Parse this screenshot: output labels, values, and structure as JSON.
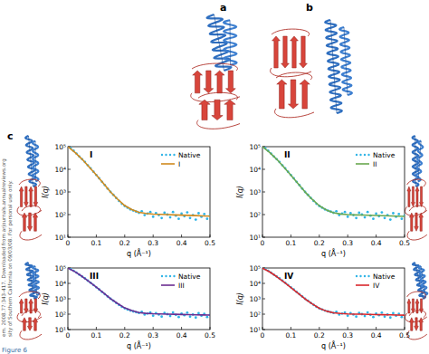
{
  "chart_data": [
    {
      "type": "line",
      "title": "I",
      "x_label": "q (Å⁻¹)",
      "y_label": "I(q)",
      "xlim": [
        0,
        0.5
      ],
      "ylim": [
        10,
        100000
      ],
      "log": "y",
      "legend": "upper right",
      "xticks": [
        0,
        0.1,
        0.2,
        0.3,
        0.4,
        0.5
      ],
      "yticks": [
        {
          "value": 10,
          "label": "10¹"
        },
        {
          "value": 100,
          "label": "10²"
        },
        {
          "value": 1000,
          "label": "10³"
        },
        {
          "value": 10000,
          "label": "10⁴"
        },
        {
          "value": 100000,
          "label": "10⁵"
        }
      ],
      "series": [
        {
          "name": "Native",
          "type": "scatter",
          "color": "#2fb4e6",
          "marker": "circle",
          "x": [
            0.01,
            0.02,
            0.03,
            0.04,
            0.05,
            0.06,
            0.07,
            0.08,
            0.09,
            0.1,
            0.11,
            0.12,
            0.13,
            0.14,
            0.15,
            0.16,
            0.17,
            0.18,
            0.19,
            0.2,
            0.21,
            0.22,
            0.23,
            0.24,
            0.25,
            0.26,
            0.27,
            0.28,
            0.29,
            0.3,
            0.31,
            0.32,
            0.33,
            0.34,
            0.35,
            0.36,
            0.37,
            0.38,
            0.39,
            0.4,
            0.41,
            0.42,
            0.43,
            0.44,
            0.45,
            0.46,
            0.47,
            0.48,
            0.49,
            0.5
          ],
          "values": [
            85000,
            66000,
            50000,
            37000,
            28000,
            21000,
            15000,
            11000,
            7800,
            5600,
            4000,
            2800,
            2000,
            1400,
            1000,
            740,
            540,
            400,
            300,
            240,
            200,
            170,
            150,
            135,
            120,
            140,
            95,
            110,
            130,
            80,
            115,
            95,
            70,
            120,
            100,
            75,
            130,
            90,
            65,
            110,
            85,
            125,
            70,
            95,
            60,
            115,
            80,
            105,
            65,
            90
          ]
        },
        {
          "name": "I",
          "type": "line",
          "color": "#d08a1e",
          "line_style": "solid",
          "x": [
            0,
            0.025,
            0.05,
            0.075,
            0.1,
            0.125,
            0.15,
            0.175,
            0.2,
            0.225,
            0.25,
            0.275,
            0.3,
            0.325,
            0.35,
            0.375,
            0.4,
            0.425,
            0.45,
            0.475,
            0.5
          ],
          "values": [
            100000,
            56000,
            28000,
            12600,
            5600,
            2400,
            1000,
            480,
            250,
            166,
            126,
            112,
            105,
            102,
            100,
            97,
            94,
            92,
            90,
            87,
            85
          ]
        }
      ]
    },
    {
      "type": "line",
      "title": "II",
      "x_label": "q (Å⁻¹)",
      "y_label": "I(q)",
      "xlim": [
        0,
        0.5
      ],
      "ylim": [
        10,
        100000
      ],
      "log": "y",
      "legend": "upper right",
      "xticks": [
        0,
        0.1,
        0.2,
        0.3,
        0.4,
        0.5
      ],
      "yticks": [
        {
          "value": 10,
          "label": "10¹"
        },
        {
          "value": 100,
          "label": "10²"
        },
        {
          "value": 1000,
          "label": "10³"
        },
        {
          "value": 10000,
          "label": "10⁴"
        },
        {
          "value": 100000,
          "label": "10⁵"
        }
      ],
      "series": [
        {
          "name": "Native",
          "type": "scatter",
          "color": "#2fb4e6",
          "marker": "circle",
          "x": [
            0.01,
            0.02,
            0.03,
            0.04,
            0.05,
            0.06,
            0.07,
            0.08,
            0.09,
            0.1,
            0.11,
            0.12,
            0.13,
            0.14,
            0.15,
            0.16,
            0.17,
            0.18,
            0.19,
            0.2,
            0.21,
            0.22,
            0.23,
            0.24,
            0.25,
            0.26,
            0.27,
            0.28,
            0.29,
            0.3,
            0.31,
            0.32,
            0.33,
            0.34,
            0.35,
            0.36,
            0.37,
            0.38,
            0.39,
            0.4,
            0.41,
            0.42,
            0.43,
            0.44,
            0.45,
            0.46,
            0.47,
            0.48,
            0.49,
            0.5
          ],
          "values": [
            85000,
            66000,
            50000,
            37000,
            28000,
            21000,
            15000,
            11000,
            7800,
            5600,
            4000,
            2800,
            2000,
            1400,
            1000,
            740,
            540,
            400,
            300,
            240,
            200,
            170,
            150,
            135,
            120,
            140,
            95,
            110,
            130,
            80,
            115,
            95,
            70,
            120,
            100,
            75,
            130,
            90,
            65,
            110,
            85,
            125,
            70,
            95,
            60,
            115,
            80,
            105,
            65,
            90
          ]
        },
        {
          "name": "II",
          "type": "line",
          "color": "#6aa84f",
          "line_style": "solid",
          "x": [
            0,
            0.025,
            0.05,
            0.075,
            0.1,
            0.125,
            0.15,
            0.175,
            0.2,
            0.225,
            0.25,
            0.275,
            0.3,
            0.325,
            0.35,
            0.375,
            0.4,
            0.425,
            0.45,
            0.475,
            0.5
          ],
          "values": [
            100000,
            56000,
            28000,
            12500,
            5500,
            2350,
            990,
            470,
            245,
            160,
            120,
            106,
            100,
            97,
            95,
            93,
            91,
            89,
            87,
            85,
            83
          ]
        }
      ]
    },
    {
      "type": "line",
      "title": "III",
      "x_label": "q (Å⁻¹)",
      "y_label": "I(q)",
      "xlim": [
        0,
        0.5
      ],
      "ylim": [
        10,
        100000
      ],
      "log": "y",
      "legend": "upper right",
      "xticks": [
        0,
        0.1,
        0.2,
        0.3,
        0.4,
        0.5
      ],
      "yticks": [
        {
          "value": 10,
          "label": "10¹"
        },
        {
          "value": 100,
          "label": "10²"
        },
        {
          "value": 1000,
          "label": "10³"
        },
        {
          "value": 10000,
          "label": "10⁴"
        },
        {
          "value": 100000,
          "label": "10⁵"
        }
      ],
      "series": [
        {
          "name": "Native",
          "type": "scatter",
          "color": "#2fb4e6",
          "marker": "circle",
          "x": [
            0.01,
            0.02,
            0.03,
            0.04,
            0.05,
            0.06,
            0.07,
            0.08,
            0.09,
            0.1,
            0.11,
            0.12,
            0.13,
            0.14,
            0.15,
            0.16,
            0.17,
            0.18,
            0.19,
            0.2,
            0.21,
            0.22,
            0.23,
            0.24,
            0.25,
            0.26,
            0.27,
            0.28,
            0.29,
            0.3,
            0.31,
            0.32,
            0.33,
            0.34,
            0.35,
            0.36,
            0.37,
            0.38,
            0.39,
            0.4,
            0.41,
            0.42,
            0.43,
            0.44,
            0.45,
            0.46,
            0.47,
            0.48,
            0.49,
            0.5
          ],
          "values": [
            85000,
            66000,
            50000,
            37000,
            28000,
            21000,
            15000,
            11000,
            7800,
            5600,
            4000,
            2800,
            2000,
            1400,
            1000,
            740,
            540,
            400,
            300,
            240,
            200,
            170,
            150,
            135,
            120,
            140,
            95,
            110,
            130,
            80,
            115,
            95,
            70,
            120,
            100,
            75,
            130,
            90,
            65,
            110,
            85,
            125,
            70,
            95,
            60,
            115,
            80,
            105,
            65,
            90
          ]
        },
        {
          "name": "III",
          "type": "line",
          "color": "#6b2d91",
          "line_style": "solid",
          "x": [
            0,
            0.025,
            0.05,
            0.075,
            0.1,
            0.125,
            0.15,
            0.175,
            0.2,
            0.225,
            0.25,
            0.275,
            0.3,
            0.325,
            0.35,
            0.375,
            0.4,
            0.425,
            0.45,
            0.475,
            0.5
          ],
          "values": [
            100000,
            57000,
            28500,
            12800,
            5700,
            2450,
            1020,
            490,
            255,
            170,
            128,
            113,
            106,
            103,
            100,
            98,
            95,
            93,
            91,
            89,
            87
          ]
        }
      ]
    },
    {
      "type": "line",
      "title": "IV",
      "x_label": "q (Å⁻¹)",
      "y_label": "I(q)",
      "xlim": [
        0,
        0.5
      ],
      "ylim": [
        10,
        100000
      ],
      "log": "y",
      "legend": "upper right",
      "xticks": [
        0,
        0.1,
        0.2,
        0.3,
        0.4,
        0.5
      ],
      "yticks": [
        {
          "value": 10,
          "label": "10¹"
        },
        {
          "value": 100,
          "label": "10²"
        },
        {
          "value": 1000,
          "label": "10³"
        },
        {
          "value": 10000,
          "label": "10⁴"
        },
        {
          "value": 100000,
          "label": "10⁵"
        }
      ],
      "series": [
        {
          "name": "Native",
          "type": "scatter",
          "color": "#2fb4e6",
          "marker": "circle",
          "x": [
            0.01,
            0.02,
            0.03,
            0.04,
            0.05,
            0.06,
            0.07,
            0.08,
            0.09,
            0.1,
            0.11,
            0.12,
            0.13,
            0.14,
            0.15,
            0.16,
            0.17,
            0.18,
            0.19,
            0.2,
            0.21,
            0.22,
            0.23,
            0.24,
            0.25,
            0.26,
            0.27,
            0.28,
            0.29,
            0.3,
            0.31,
            0.32,
            0.33,
            0.34,
            0.35,
            0.36,
            0.37,
            0.38,
            0.39,
            0.4,
            0.41,
            0.42,
            0.43,
            0.44,
            0.45,
            0.46,
            0.47,
            0.48,
            0.49,
            0.5
          ],
          "values": [
            85000,
            66000,
            50000,
            37000,
            28000,
            21000,
            15000,
            11000,
            7800,
            5600,
            4000,
            2800,
            2000,
            1400,
            1000,
            740,
            540,
            400,
            300,
            240,
            200,
            170,
            150,
            135,
            120,
            140,
            95,
            110,
            130,
            80,
            115,
            95,
            70,
            120,
            100,
            75,
            130,
            90,
            65,
            110,
            85,
            125,
            70,
            95,
            60,
            115,
            80,
            105,
            65,
            90
          ]
        },
        {
          "name": "IV",
          "type": "line",
          "color": "#d9262b",
          "line_style": "solid",
          "x": [
            0,
            0.025,
            0.05,
            0.075,
            0.1,
            0.125,
            0.15,
            0.175,
            0.2,
            0.225,
            0.25,
            0.275,
            0.3,
            0.325,
            0.35,
            0.375,
            0.4,
            0.425,
            0.45,
            0.475,
            0.5
          ],
          "values": [
            100000,
            56000,
            27500,
            12300,
            5400,
            2300,
            970,
            465,
            240,
            158,
            122,
            110,
            104,
            101,
            99,
            96,
            94,
            92,
            90,
            88,
            86
          ]
        }
      ]
    }
  ],
  "panel_labels": [
    "a",
    "b",
    "c"
  ],
  "caption": "Figure 6",
  "side_text": [
    "em. 2008.77:343-417. Downloaded from arjournals.annualreviews.org",
    "sity of Southern California on 09/03/08. For personal use only."
  ]
}
